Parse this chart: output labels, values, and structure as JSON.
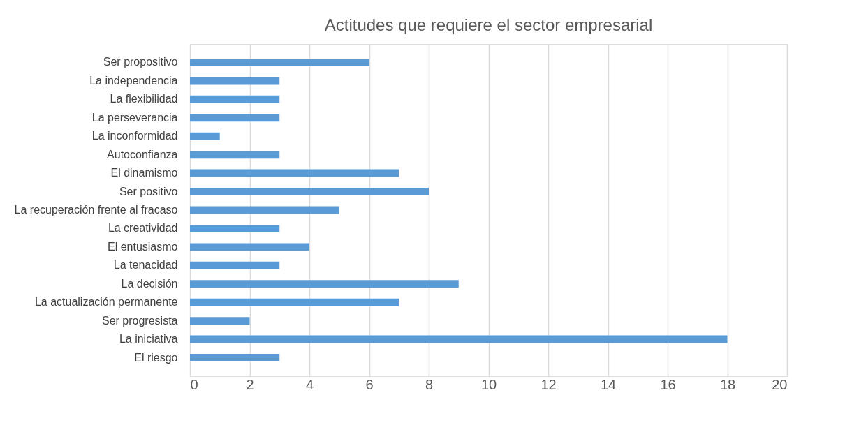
{
  "chart_data": {
    "type": "bar",
    "orientation": "horizontal",
    "title": "Actitudes que requiere el sector empresarial",
    "categories": [
      "Ser propositivo",
      "La independencia",
      "La flexibilidad",
      "La perseverancia",
      "La inconformidad",
      "Autoconfianza",
      "El dinamismo",
      "Ser positivo",
      "La recuperación frente al fracaso",
      "La creatividad",
      "El entusiasmo",
      "La tenacidad",
      "La decisión",
      "La actualización permanente",
      "Ser progresista",
      "La iniciativa",
      "El riesgo"
    ],
    "values": [
      6,
      3,
      3,
      3,
      1,
      3,
      7,
      8,
      5,
      3,
      4,
      3,
      9,
      7,
      2,
      18,
      3
    ],
    "color": "#5b9bd5",
    "xlim": [
      0,
      20
    ],
    "xticks": [
      0,
      2,
      4,
      6,
      8,
      10,
      12,
      14,
      16,
      18,
      20
    ],
    "grid": "x"
  }
}
